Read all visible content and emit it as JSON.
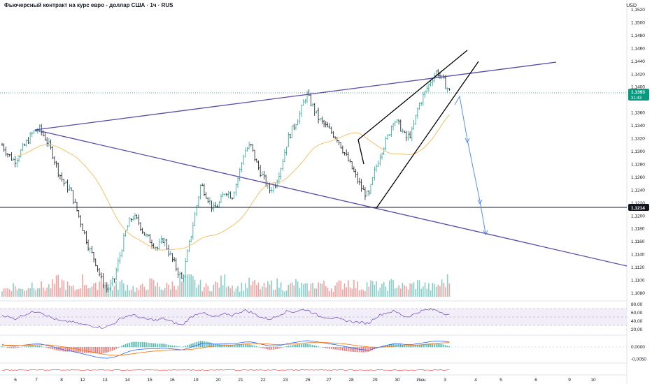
{
  "header": {
    "title": "Фьючерсный контракт на курс евро - доллар США · 1ч · RUS",
    "currency": "USD"
  },
  "colors": {
    "up": "#26a69a",
    "down": "#131722",
    "volume_up": "#26a69a",
    "volume_down": "#ef5350",
    "ma": "#f5c26b",
    "trend": "#5b4aa6",
    "wedge": "#000000",
    "arrow": "#5b8def",
    "rsi": "#7e57c2",
    "rsi_band": "#ede7f6",
    "macd_line": "#2962ff",
    "signal_line": "#ff6d00",
    "badge_green": "#089981",
    "badge_dark": "#131722"
  },
  "chart_data": {
    "type": "candlestick",
    "price_axis": {
      "min": 1.108,
      "max": 1.152,
      "ticks": [
        "1,1520",
        "1,1500",
        "1,1480",
        "1,1460",
        "1,1440",
        "1,1420",
        "1,1400",
        "1,1360",
        "1,1340",
        "1,1320",
        "1,1300",
        "1,1280",
        "1,1260",
        "1,1240",
        "1,1220",
        "1,1200",
        "1,1180",
        "1,1160",
        "1,1140",
        "1,1120",
        "1,1100",
        "1,1080"
      ]
    },
    "price_labels": {
      "last_price": "1,1393",
      "countdown": "31:43",
      "level_price": "1,1214"
    },
    "horizontal_level": 1.1214,
    "x_axis": {
      "labels": [
        "6",
        "7",
        "8",
        "12",
        "13",
        "14",
        "15",
        "16",
        "19",
        "20",
        "21",
        "22",
        "23",
        "26",
        "27",
        "28",
        "29",
        "30",
        "Июн",
        "3",
        "4",
        "5",
        "6",
        "9",
        "10"
      ]
    },
    "price_path": [
      1.131,
      1.1295,
      1.1285,
      1.13,
      1.1315,
      1.133,
      1.1335,
      1.132,
      1.13,
      1.127,
      1.125,
      1.124,
      1.121,
      1.118,
      1.115,
      1.113,
      1.11,
      1.1085,
      1.11,
      1.114,
      1.118,
      1.12,
      1.119,
      1.117,
      1.116,
      1.115,
      1.1165,
      1.114,
      1.112,
      1.11,
      1.115,
      1.12,
      1.125,
      1.123,
      1.121,
      1.122,
      1.124,
      1.123,
      1.126,
      1.13,
      1.131,
      1.128,
      1.126,
      1.124,
      1.125,
      1.128,
      1.132,
      1.134,
      1.136,
      1.139,
      1.137,
      1.135,
      1.134,
      1.133,
      1.132,
      1.13,
      1.128,
      1.126,
      1.124,
      1.123,
      1.127,
      1.13,
      1.132,
      1.135,
      1.134,
      1.132,
      1.133,
      1.137,
      1.139,
      1.141,
      1.1425,
      1.141,
      1.1393
    ],
    "volume_path": [
      0.3,
      0.4,
      0.5,
      0.3,
      0.4,
      0.6,
      0.5,
      0.4,
      0.5,
      0.7,
      0.6,
      0.4,
      0.3,
      0.8,
      0.5,
      0.4,
      0.9,
      0.5,
      0.4,
      0.6,
      0.5,
      0.4,
      0.3,
      0.5,
      0.6,
      0.5,
      0.4,
      0.5,
      0.6,
      0.7,
      1.0,
      0.6,
      0.5,
      0.4,
      0.5,
      0.6,
      0.8,
      0.5,
      0.4,
      0.5,
      0.6,
      0.5,
      0.4,
      0.5,
      0.6,
      0.5,
      0.4,
      0.6,
      0.5,
      0.4,
      0.5,
      0.6,
      0.5,
      0.4,
      0.5,
      0.6,
      0.7,
      0.5,
      0.4,
      0.6,
      0.5,
      0.4,
      0.5,
      0.6,
      0.5,
      0.4,
      0.5,
      0.6,
      0.5,
      0.4,
      0.5,
      0.6,
      0.8
    ],
    "rsi": {
      "ticks": [
        "80,00",
        "60,00",
        "40,00",
        "20,00"
      ],
      "min": 10,
      "max": 85,
      "band": [
        30,
        70
      ],
      "values": [
        55,
        50,
        45,
        52,
        58,
        62,
        64,
        55,
        48,
        42,
        38,
        40,
        35,
        32,
        30,
        28,
        25,
        27,
        35,
        45,
        52,
        55,
        50,
        45,
        44,
        42,
        47,
        40,
        35,
        30,
        45,
        55,
        62,
        55,
        50,
        52,
        58,
        54,
        60,
        66,
        62,
        54,
        48,
        45,
        50,
        58,
        64,
        62,
        66,
        68,
        60,
        52,
        50,
        48,
        46,
        42,
        40,
        38,
        36,
        35,
        48,
        56,
        60,
        64,
        58,
        50,
        54,
        62,
        66,
        68,
        66,
        60,
        55
      ]
    },
    "macd": {
      "ticks": [
        "0,0000",
        "-0,0050"
      ],
      "min": -0.006,
      "max": 0.004,
      "line": [
        0.001,
        0.0005,
        0.0003,
        0.0006,
        0.0009,
        0.0012,
        0.0013,
        0.0008,
        0.0002,
        -0.0005,
        -0.0012,
        -0.0016,
        -0.0022,
        -0.0028,
        -0.0034,
        -0.004,
        -0.0045,
        -0.0046,
        -0.0042,
        -0.0033,
        -0.0022,
        -0.0014,
        -0.001,
        -0.0008,
        -0.0007,
        -0.0007,
        -0.0005,
        -0.0007,
        -0.0009,
        -0.0012,
        -0.0005,
        0.0004,
        0.0013,
        0.0015,
        0.0012,
        0.0012,
        0.0014,
        0.0013,
        0.0016,
        0.002,
        0.0021,
        0.0016,
        0.001,
        0.0005,
        0.0004,
        0.0008,
        0.0014,
        0.0018,
        0.0022,
        0.0026,
        0.0024,
        0.002,
        0.0016,
        0.0012,
        0.0008,
        0.0003,
        -0.0002,
        -0.0007,
        -0.0011,
        -0.0013,
        -0.0006,
        0.0001,
        0.0007,
        0.0013,
        0.0013,
        0.001,
        0.001,
        0.0014,
        0.0018,
        0.0022,
        0.0025,
        0.0024,
        0.002
      ],
      "signal": [
        0.0008,
        0.0007,
        0.0006,
        0.0006,
        0.0007,
        0.0008,
        0.0009,
        0.0009,
        0.0007,
        0.0004,
        0.0,
        -0.0004,
        -0.0008,
        -0.0013,
        -0.0018,
        -0.0023,
        -0.0028,
        -0.0032,
        -0.0034,
        -0.0034,
        -0.0031,
        -0.0028,
        -0.0024,
        -0.0021,
        -0.0018,
        -0.0016,
        -0.0014,
        -0.0012,
        -0.0012,
        -0.0012,
        -0.0011,
        -0.0008,
        -0.0004,
        0.0,
        0.0003,
        0.0005,
        0.0007,
        0.0008,
        0.001,
        0.0012,
        0.0014,
        0.0014,
        0.0013,
        0.0012,
        0.001,
        0.001,
        0.0011,
        0.0012,
        0.0014,
        0.0017,
        0.0018,
        0.0019,
        0.0018,
        0.0017,
        0.0015,
        0.0013,
        0.001,
        0.0006,
        0.0003,
        0.0,
        -0.0001,
        -0.0001,
        0.0001,
        0.0003,
        0.0005,
        0.0006,
        0.0007,
        0.0008,
        0.001,
        0.0012,
        0.0015,
        0.0017,
        0.0018
      ]
    }
  }
}
